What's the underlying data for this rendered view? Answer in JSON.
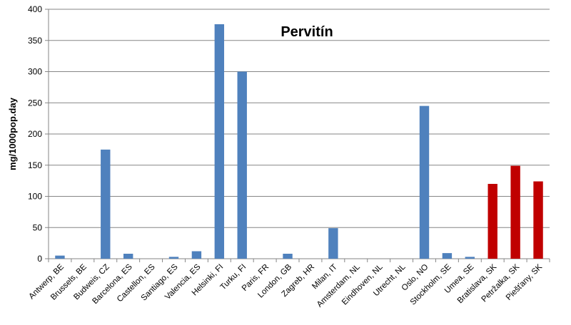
{
  "chart_data": {
    "type": "bar",
    "title": "Pervitín",
    "xlabel": "",
    "ylabel": "mg/1000pop.day",
    "ylim": [
      0,
      400
    ],
    "yticks": [
      0,
      50,
      100,
      150,
      200,
      250,
      300,
      350,
      400
    ],
    "grid": true,
    "legend": "none",
    "categories": [
      "Antwerp, BE",
      "Brussels, BE",
      "Budweis, CZ",
      "Barcelona, ES",
      "Castellon, ES",
      "Santiago, ES",
      "Valencia, ES",
      "Helsinki, FI",
      "Turku, FI",
      "Paris, FR",
      "London, GB",
      "Zagreb, HR",
      "Milan, IT",
      "Amsterdam, NL",
      "Eindhoven, NL",
      "Utrecht, NL",
      "Oslo, NO",
      "Stockholm, SE",
      "Umea, SE",
      "Bratislava, SK",
      "Petržalka, SK",
      "Piešťany, SK"
    ],
    "values": [
      5,
      0,
      175,
      8,
      0,
      3,
      12,
      376,
      300,
      0,
      8,
      0,
      49,
      0,
      0,
      0,
      245,
      9,
      3,
      120,
      149,
      124
    ],
    "bar_colors": [
      "#4f81bd",
      "#4f81bd",
      "#4f81bd",
      "#4f81bd",
      "#4f81bd",
      "#4f81bd",
      "#4f81bd",
      "#4f81bd",
      "#4f81bd",
      "#4f81bd",
      "#4f81bd",
      "#4f81bd",
      "#4f81bd",
      "#4f81bd",
      "#4f81bd",
      "#4f81bd",
      "#4f81bd",
      "#4f81bd",
      "#4f81bd",
      "#c00000",
      "#c00000",
      "#c00000"
    ]
  }
}
